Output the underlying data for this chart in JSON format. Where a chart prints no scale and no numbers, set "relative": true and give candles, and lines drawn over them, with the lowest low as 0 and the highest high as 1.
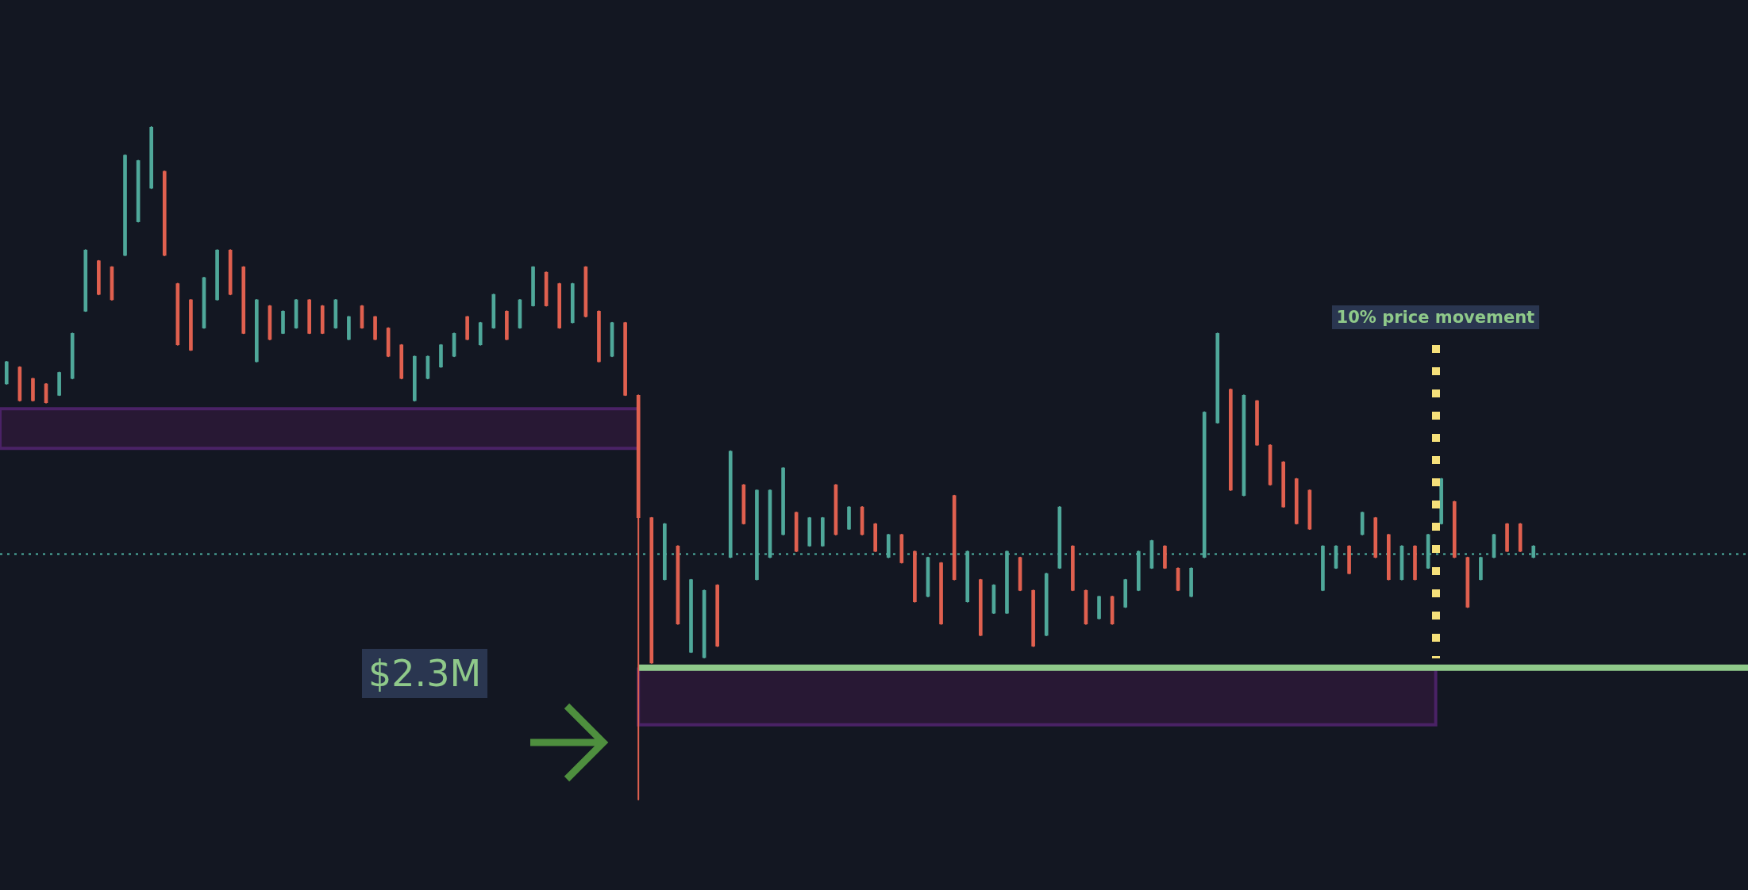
{
  "chart_data": {
    "type": "candlestick",
    "relative": true,
    "categories": [
      null,
      null,
      null,
      null,
      null,
      null,
      null,
      null,
      null,
      null,
      null,
      null,
      null,
      null,
      null,
      null,
      null,
      null,
      null,
      null,
      null,
      null,
      null,
      null,
      null,
      null,
      null,
      null,
      null,
      null,
      null,
      null,
      null,
      null,
      null,
      null,
      null,
      null,
      null,
      null,
      null,
      null,
      null,
      null,
      null,
      null,
      null,
      null,
      null,
      null,
      null,
      null,
      null,
      null,
      null,
      null,
      null,
      null,
      null,
      null,
      null,
      null,
      null,
      null,
      null,
      null,
      null,
      null,
      null,
      null,
      null,
      null,
      null,
      null,
      null,
      null,
      null,
      null,
      null,
      null,
      null,
      null,
      null,
      null,
      null,
      null,
      null,
      null,
      null,
      null,
      null,
      null,
      null,
      null,
      null,
      null,
      null,
      null,
      null,
      null,
      null,
      null,
      null,
      null,
      null,
      null,
      null,
      null,
      null,
      null,
      null,
      null,
      null,
      null,
      null,
      null,
      null
    ],
    "ohlc": [
      [
        0.618,
        0.651,
        0.618,
        0.651
      ],
      [
        0.643,
        0.643,
        0.593,
        0.593
      ],
      [
        0.626,
        0.626,
        0.593,
        0.593
      ],
      [
        0.618,
        0.618,
        0.59,
        0.59
      ],
      [
        0.601,
        0.635,
        0.601,
        0.635
      ],
      [
        0.626,
        0.693,
        0.626,
        0.693
      ],
      [
        0.726,
        0.817,
        0.726,
        0.817
      ],
      [
        0.801,
        0.801,
        0.751,
        0.751
      ],
      [
        0.792,
        0.792,
        0.743,
        0.743
      ],
      [
        0.809,
        0.958,
        0.809,
        0.958
      ],
      [
        0.859,
        0.95,
        0.859,
        0.95
      ],
      [
        0.909,
        1,
        0.909,
        1
      ],
      [
        0.934,
        0.934,
        0.809,
        0.809
      ],
      [
        0.767,
        0.767,
        0.676,
        0.676
      ],
      [
        0.743,
        0.743,
        0.668,
        0.668
      ],
      [
        0.701,
        0.776,
        0.701,
        0.776
      ],
      [
        0.743,
        0.817,
        0.743,
        0.817
      ],
      [
        0.817,
        0.817,
        0.751,
        0.751
      ],
      [
        0.792,
        0.792,
        0.693,
        0.693
      ],
      [
        0.651,
        0.743,
        0.651,
        0.743
      ],
      [
        0.734,
        0.734,
        0.684,
        0.684
      ],
      [
        0.693,
        0.726,
        0.693,
        0.726
      ],
      [
        0.701,
        0.743,
        0.701,
        0.743
      ],
      [
        0.743,
        0.743,
        0.693,
        0.693
      ],
      [
        0.734,
        0.734,
        0.693,
        0.693
      ],
      [
        0.701,
        0.743,
        0.701,
        0.743
      ],
      [
        0.684,
        0.718,
        0.684,
        0.718
      ],
      [
        0.734,
        0.734,
        0.701,
        0.701
      ],
      [
        0.718,
        0.718,
        0.684,
        0.684
      ],
      [
        0.701,
        0.701,
        0.659,
        0.659
      ],
      [
        0.676,
        0.676,
        0.626,
        0.626
      ],
      [
        0.593,
        0.659,
        0.593,
        0.659
      ],
      [
        0.626,
        0.659,
        0.626,
        0.659
      ],
      [
        0.643,
        0.676,
        0.643,
        0.676
      ],
      [
        0.659,
        0.693,
        0.659,
        0.693
      ],
      [
        0.718,
        0.718,
        0.684,
        0.684
      ],
      [
        0.676,
        0.709,
        0.676,
        0.709
      ],
      [
        0.701,
        0.751,
        0.701,
        0.751
      ],
      [
        0.726,
        0.726,
        0.684,
        0.684
      ],
      [
        0.701,
        0.743,
        0.701,
        0.743
      ],
      [
        0.734,
        0.792,
        0.734,
        0.792
      ],
      [
        0.784,
        0.784,
        0.734,
        0.734
      ],
      [
        0.767,
        0.767,
        0.701,
        0.701
      ],
      [
        0.709,
        0.767,
        0.709,
        0.767
      ],
      [
        0.792,
        0.792,
        0.718,
        0.718
      ],
      [
        0.726,
        0.726,
        0.651,
        0.651
      ],
      [
        0.659,
        0.709,
        0.659,
        0.709
      ],
      [
        0.709,
        0.709,
        0.601,
        0.601
      ],
      [
        0.601,
        0.601,
        0,
        0.419
      ],
      [
        0.419,
        0.419,
        0.203,
        0.203
      ],
      [
        0.327,
        0.41,
        0.327,
        0.41
      ],
      [
        0.377,
        0.377,
        0.261,
        0.261
      ],
      [
        0.219,
        0.327,
        0.219,
        0.327
      ],
      [
        0.211,
        0.311,
        0.211,
        0.311
      ],
      [
        0.319,
        0.319,
        0.228,
        0.228
      ],
      [
        0.36,
        0.518,
        0.36,
        0.518
      ],
      [
        0.468,
        0.468,
        0.41,
        0.41
      ],
      [
        0.327,
        0.46,
        0.327,
        0.46
      ],
      [
        0.36,
        0.46,
        0.36,
        0.46
      ],
      [
        0.394,
        0.493,
        0.394,
        0.493
      ],
      [
        0.427,
        0.427,
        0.369,
        0.369
      ],
      [
        0.377,
        0.419,
        0.377,
        0.419
      ],
      [
        0.377,
        0.419,
        0.377,
        0.419
      ],
      [
        0.468,
        0.468,
        0.394,
        0.394
      ],
      [
        0.402,
        0.435,
        0.402,
        0.435
      ],
      [
        0.435,
        0.435,
        0.394,
        0.394
      ],
      [
        0.41,
        0.41,
        0.369,
        0.369
      ],
      [
        0.36,
        0.394,
        0.36,
        0.394
      ],
      [
        0.394,
        0.394,
        0.352,
        0.352
      ],
      [
        0.369,
        0.369,
        0.294,
        0.294
      ],
      [
        0.302,
        0.36,
        0.302,
        0.36
      ],
      [
        0.352,
        0.352,
        0.261,
        0.261
      ],
      [
        0.452,
        0.452,
        0.327,
        0.327
      ],
      [
        0.294,
        0.369,
        0.294,
        0.369
      ],
      [
        0.327,
        0.327,
        0.244,
        0.244
      ],
      [
        0.277,
        0.319,
        0.277,
        0.319
      ],
      [
        0.277,
        0.369,
        0.277,
        0.369
      ],
      [
        0.36,
        0.36,
        0.311,
        0.311
      ],
      [
        0.311,
        0.311,
        0.228,
        0.228
      ],
      [
        0.244,
        0.336,
        0.244,
        0.336
      ],
      [
        0.344,
        0.435,
        0.344,
        0.435
      ],
      [
        0.377,
        0.377,
        0.311,
        0.311
      ],
      [
        0.311,
        0.311,
        0.261,
        0.261
      ],
      [
        0.269,
        0.302,
        0.269,
        0.302
      ],
      [
        0.302,
        0.302,
        0.261,
        0.261
      ],
      [
        0.286,
        0.327,
        0.286,
        0.327
      ],
      [
        0.311,
        0.369,
        0.311,
        0.369
      ],
      [
        0.344,
        0.385,
        0.344,
        0.385
      ],
      [
        0.377,
        0.377,
        0.344,
        0.344
      ],
      [
        0.344,
        0.344,
        0.311,
        0.311
      ],
      [
        0.302,
        0.344,
        0.302,
        0.344
      ],
      [
        0.36,
        0.576,
        0.36,
        0.576
      ],
      [
        0.56,
        0.693,
        0.56,
        0.693
      ],
      [
        0.61,
        0.61,
        0.46,
        0.46
      ],
      [
        0.452,
        0.601,
        0.452,
        0.601
      ],
      [
        0.593,
        0.593,
        0.527,
        0.527
      ],
      [
        0.527,
        0.527,
        0.468,
        0.468
      ],
      [
        0.502,
        0.502,
        0.435,
        0.435
      ],
      [
        0.477,
        0.477,
        0.41,
        0.41
      ],
      [
        0.46,
        0.46,
        0.402,
        0.402
      ],
      [
        0.311,
        0.377,
        0.311,
        0.377
      ],
      [
        0.344,
        0.377,
        0.344,
        0.377
      ],
      [
        0.377,
        0.377,
        0.336,
        0.336
      ],
      [
        0.394,
        0.427,
        0.394,
        0.427
      ],
      [
        0.419,
        0.419,
        0.36,
        0.36
      ],
      [
        0.394,
        0.394,
        0.327,
        0.327
      ],
      [
        0.327,
        0.377,
        0.327,
        0.377
      ],
      [
        0.377,
        0.377,
        0.327,
        0.327
      ],
      [
        0.344,
        0.394,
        0.344,
        0.394
      ],
      [
        0.41,
        0.477,
        0.41,
        0.477
      ],
      [
        0.443,
        0.443,
        0.36,
        0.36
      ],
      [
        0.36,
        0.36,
        0.286,
        0.286
      ],
      [
        0.327,
        0.36,
        0.327,
        0.36
      ],
      [
        0.36,
        0.394,
        0.36,
        0.394
      ],
      [
        0.41,
        0.41,
        0.369,
        0.369
      ],
      [
        0.41,
        0.41,
        0.369,
        0.369
      ],
      [
        0.36,
        0.377,
        0.36,
        0.377
      ]
    ],
    "bands": [
      {
        "axis": "y",
        "from": 0.522,
        "to": 0.581,
        "color": "#281834"
      },
      {
        "axis": "y",
        "from": 0.111,
        "to": 0.194,
        "color": "#281834"
      }
    ],
    "ref_lines": [
      {
        "axis": "y",
        "value": 0.365,
        "color": "#4fb3a3",
        "line_style": "dotted"
      },
      {
        "axis": "y",
        "value": 0.196,
        "color": "#8fc98a"
      }
    ],
    "annotations": [
      "$2.3M",
      "10% price movement"
    ]
  }
}
